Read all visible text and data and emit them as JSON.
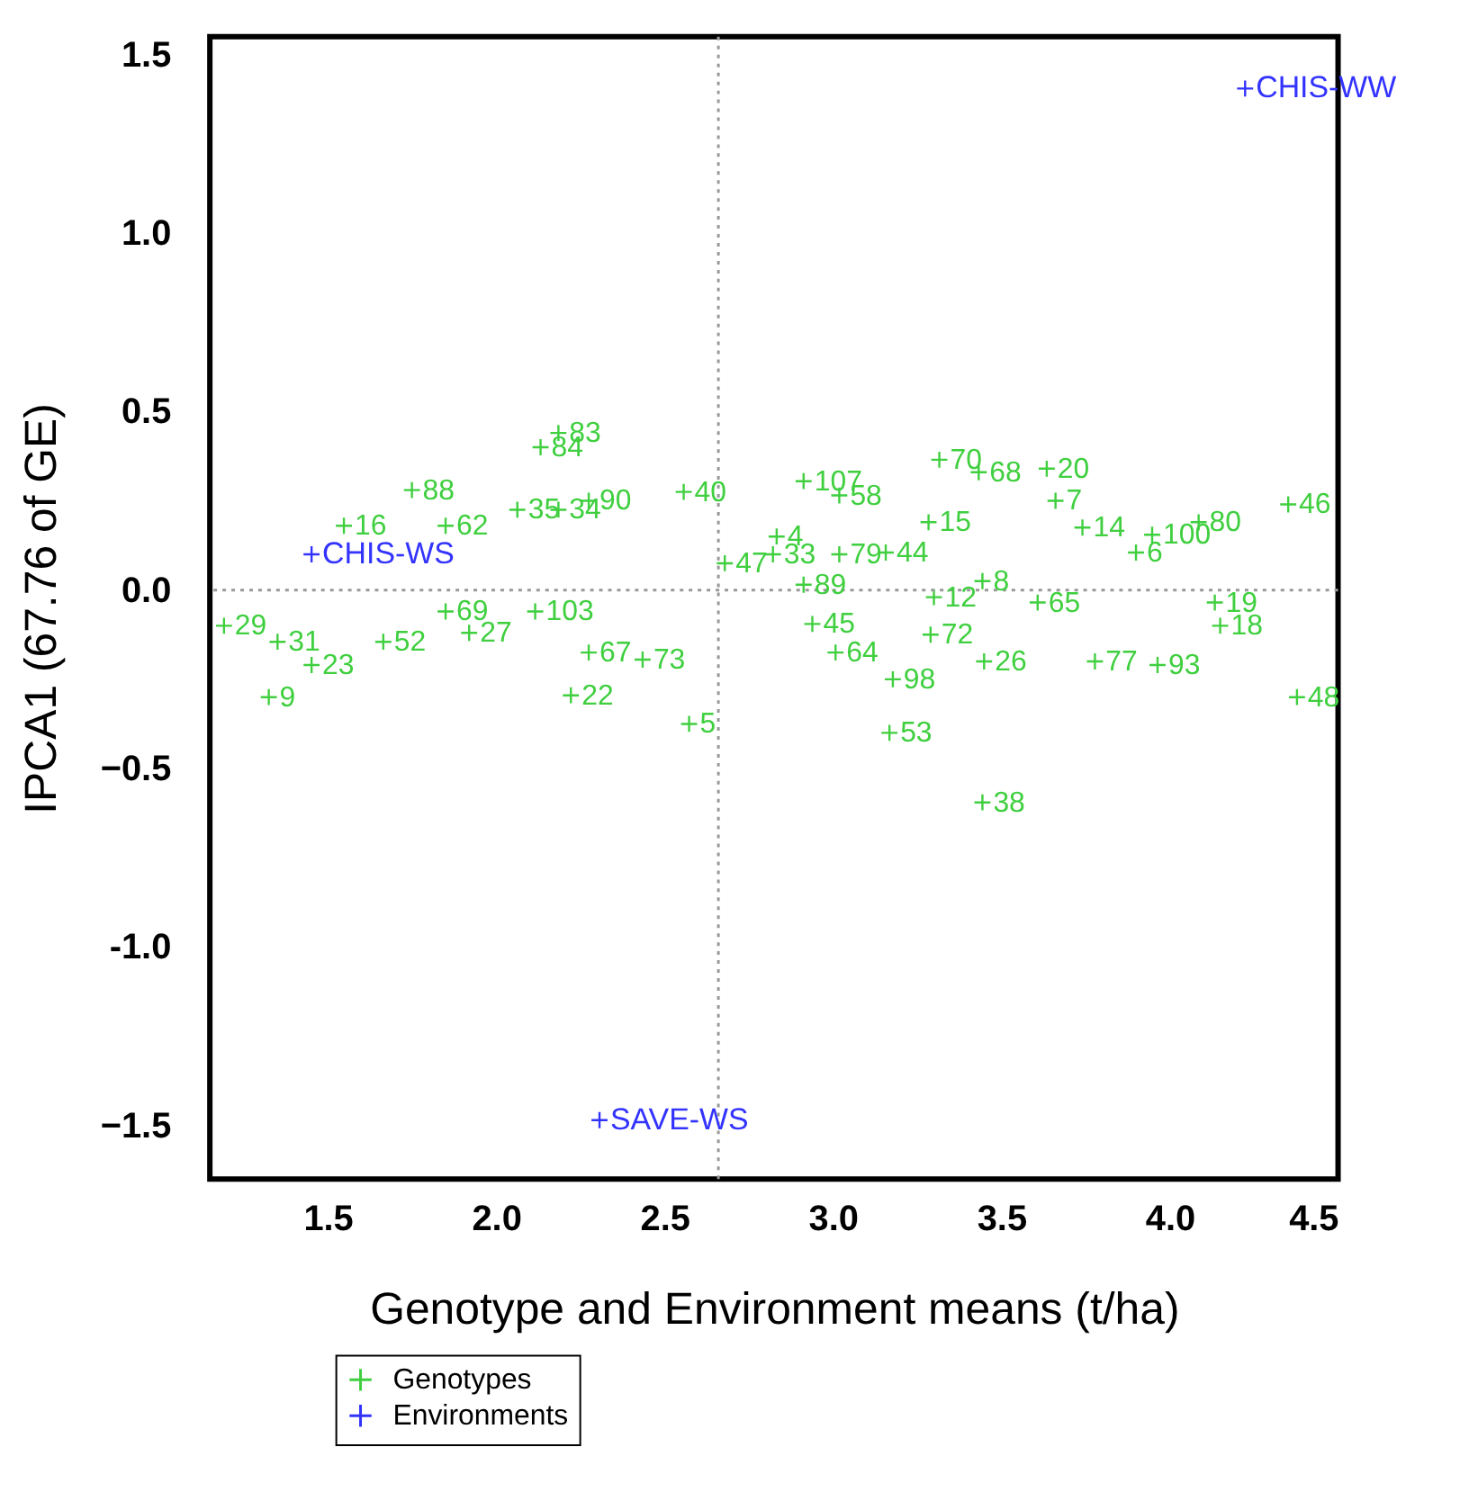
{
  "chart_data": {
    "type": "scatter",
    "xlabel": "Genotype and Environment means (t/ha)",
    "ylabel": "IPCA1 (67.76 of GE)",
    "xlim": [
      1.15,
      4.5
    ],
    "ylim": [
      -1.65,
      1.55
    ],
    "xticks": [
      1.5,
      {
        "value": 2,
        "label": "2.0"
      },
      2.5,
      {
        "value": 3,
        "label": "3.0"
      },
      3.5,
      {
        "value": 4,
        "label": "4.0"
      },
      4.5
    ],
    "yticks": [
      -1.5,
      {
        "value": -1,
        "label": "-1.0"
      },
      -0.5,
      {
        "value": 0,
        "label": "0.0"
      },
      0.5,
      {
        "value": 1,
        "label": "1.0"
      },
      1.5
    ],
    "grid": false,
    "legend": "bottom left",
    "marker": "cross",
    "ref_lines": [
      {
        "axis": "x",
        "value": 2.66,
        "color": "#999999",
        "line_style": "dotted"
      },
      {
        "axis": "y",
        "value": 0,
        "color": "#999999",
        "line_style": "dotted"
      }
    ],
    "series": [
      {
        "name": "Genotypes",
        "color": "#3fcf3f",
        "x": [
          2.185,
          2.132,
          1.75,
          2.063,
          2.185,
          2.275,
          1.548,
          1.85,
          1.192,
          1.351,
          1.452,
          1.325,
          1.665,
          1.92,
          2.222,
          2.275,
          2.435,
          2.116,
          1.85,
          2.557,
          2.913,
          3.019,
          3.316,
          3.433,
          3.635,
          3.661,
          3.741,
          3.9,
          3.948,
          4.086,
          4.352,
          2.833,
          2.822,
          3.019,
          3.157,
          3.284,
          3.3,
          3.444,
          3.608,
          4.134,
          4.15,
          3.778,
          3.964,
          4.378,
          3.29,
          3.449,
          3.178,
          3.168,
          2.573,
          2.939,
          3.008,
          2.913,
          2.679,
          3.444
        ],
        "values": [
          0.44,
          0.4,
          0.28,
          0.225,
          0.225,
          0.25,
          0.18,
          0.18,
          -0.1,
          -0.145,
          -0.21,
          -0.3,
          -0.145,
          -0.12,
          -0.295,
          -0.175,
          -0.195,
          -0.06,
          -0.06,
          0.275,
          0.305,
          0.265,
          0.365,
          0.33,
          0.34,
          0.25,
          0.175,
          0.105,
          0.155,
          0.19,
          0.24,
          0.15,
          0.1,
          0.1,
          0.105,
          0.19,
          -0.02,
          0.025,
          -0.035,
          -0.035,
          -0.1,
          -0.2,
          -0.21,
          -0.3,
          -0.125,
          -0.2,
          -0.25,
          -0.4,
          -0.375,
          -0.095,
          -0.175,
          0.015,
          0.075,
          -0.595
        ]
      },
      {
        "name": "Environments",
        "color": "#3333ff",
        "x": [
          4.224,
          1.452,
          2.307
        ],
        "values": [
          1.405,
          0.1,
          -1.485
        ]
      }
    ],
    "annotations": [
      {
        "text": "83",
        "x": 2.185,
        "y": 0.44
      },
      {
        "text": "84",
        "x": 2.132,
        "y": 0.4
      },
      {
        "text": "88",
        "x": 1.75,
        "y": 0.28
      },
      {
        "text": "35",
        "x": 2.063,
        "y": 0.225
      },
      {
        "text": "34",
        "x": 2.185,
        "y": 0.225
      },
      {
        "text": "90",
        "x": 2.275,
        "y": 0.25
      },
      {
        "text": "16",
        "x": 1.548,
        "y": 0.18
      },
      {
        "text": "62",
        "x": 1.85,
        "y": 0.18
      },
      {
        "text": "29",
        "x": 1.192,
        "y": -0.1
      },
      {
        "text": "31",
        "x": 1.351,
        "y": -0.145
      },
      {
        "text": "23",
        "x": 1.452,
        "y": -0.21
      },
      {
        "text": "9",
        "x": 1.325,
        "y": -0.3
      },
      {
        "text": "52",
        "x": 1.665,
        "y": -0.145
      },
      {
        "text": "27",
        "x": 1.92,
        "y": -0.12
      },
      {
        "text": "22",
        "x": 2.222,
        "y": -0.295
      },
      {
        "text": "67",
        "x": 2.275,
        "y": -0.175
      },
      {
        "text": "73",
        "x": 2.435,
        "y": -0.195
      },
      {
        "text": "103",
        "x": 2.116,
        "y": -0.06
      },
      {
        "text": "69",
        "x": 1.85,
        "y": -0.06
      },
      {
        "text": "40",
        "x": 2.557,
        "y": 0.275
      },
      {
        "text": "107",
        "x": 2.913,
        "y": 0.305
      },
      {
        "text": "58",
        "x": 3.019,
        "y": 0.265
      },
      {
        "text": "70",
        "x": 3.316,
        "y": 0.365
      },
      {
        "text": "68",
        "x": 3.433,
        "y": 0.33
      },
      {
        "text": "20",
        "x": 3.635,
        "y": 0.34
      },
      {
        "text": "7",
        "x": 3.661,
        "y": 0.25
      },
      {
        "text": "14",
        "x": 3.741,
        "y": 0.175
      },
      {
        "text": "6",
        "x": 3.9,
        "y": 0.105
      },
      {
        "text": "100",
        "x": 3.948,
        "y": 0.155
      },
      {
        "text": "80",
        "x": 4.086,
        "y": 0.19
      },
      {
        "text": "46",
        "x": 4.352,
        "y": 0.24
      },
      {
        "text": "4",
        "x": 2.833,
        "y": 0.15
      },
      {
        "text": "33",
        "x": 2.822,
        "y": 0.1
      },
      {
        "text": "79",
        "x": 3.019,
        "y": 0.1
      },
      {
        "text": "44",
        "x": 3.157,
        "y": 0.105
      },
      {
        "text": "15",
        "x": 3.284,
        "y": 0.19
      },
      {
        "text": "12",
        "x": 3.3,
        "y": -0.02
      },
      {
        "text": "8",
        "x": 3.444,
        "y": 0.025
      },
      {
        "text": "65",
        "x": 3.608,
        "y": -0.035
      },
      {
        "text": "19",
        "x": 4.134,
        "y": -0.035
      },
      {
        "text": "18",
        "x": 4.15,
        "y": -0.1
      },
      {
        "text": "77",
        "x": 3.778,
        "y": -0.2
      },
      {
        "text": "93",
        "x": 3.964,
        "y": -0.21
      },
      {
        "text": "48",
        "x": 4.378,
        "y": -0.3
      },
      {
        "text": "72",
        "x": 3.29,
        "y": -0.125
      },
      {
        "text": "26",
        "x": 3.449,
        "y": -0.2
      },
      {
        "text": "98",
        "x": 3.178,
        "y": -0.25
      },
      {
        "text": "53",
        "x": 3.168,
        "y": -0.4
      },
      {
        "text": "5",
        "x": 2.573,
        "y": -0.375
      },
      {
        "text": "45",
        "x": 2.939,
        "y": -0.095
      },
      {
        "text": "64",
        "x": 3.008,
        "y": -0.175
      },
      {
        "text": "89",
        "x": 2.913,
        "y": 0.015
      },
      {
        "text": "47",
        "x": 2.679,
        "y": 0.075
      },
      {
        "text": "38",
        "x": 3.444,
        "y": -0.595
      },
      {
        "text": "CHIS-WW",
        "x": 4.224,
        "y": 1.405
      },
      {
        "text": "CHIS-WS",
        "x": 1.452,
        "y": 0.1
      },
      {
        "text": "SAVE-WS",
        "x": 2.307,
        "y": -1.485
      }
    ]
  }
}
